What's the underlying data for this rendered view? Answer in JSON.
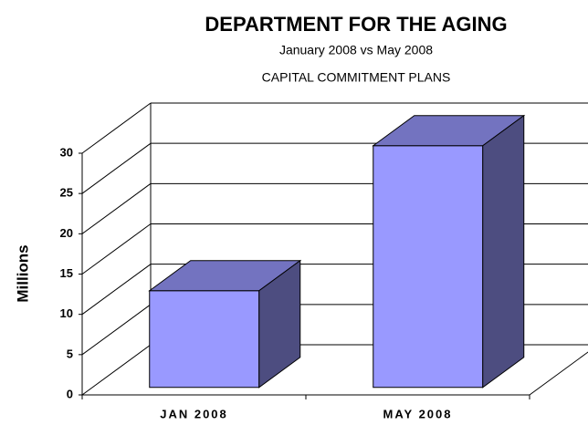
{
  "chart_data": {
    "type": "bar3d",
    "title": "DEPARTMENT FOR THE AGING",
    "subtitle": "January 2008 vs May 2008",
    "subtitle2": "CAPITAL COMMITMENT PLANS",
    "y_label": "Millions",
    "categories": [
      "JAN 2008",
      "MAY 2008"
    ],
    "values": [
      12,
      30
    ],
    "color": "#9999ff",
    "ylim": [
      0,
      30
    ],
    "yticks": [
      0,
      5,
      10,
      15,
      20,
      25,
      30
    ],
    "grid": true
  }
}
